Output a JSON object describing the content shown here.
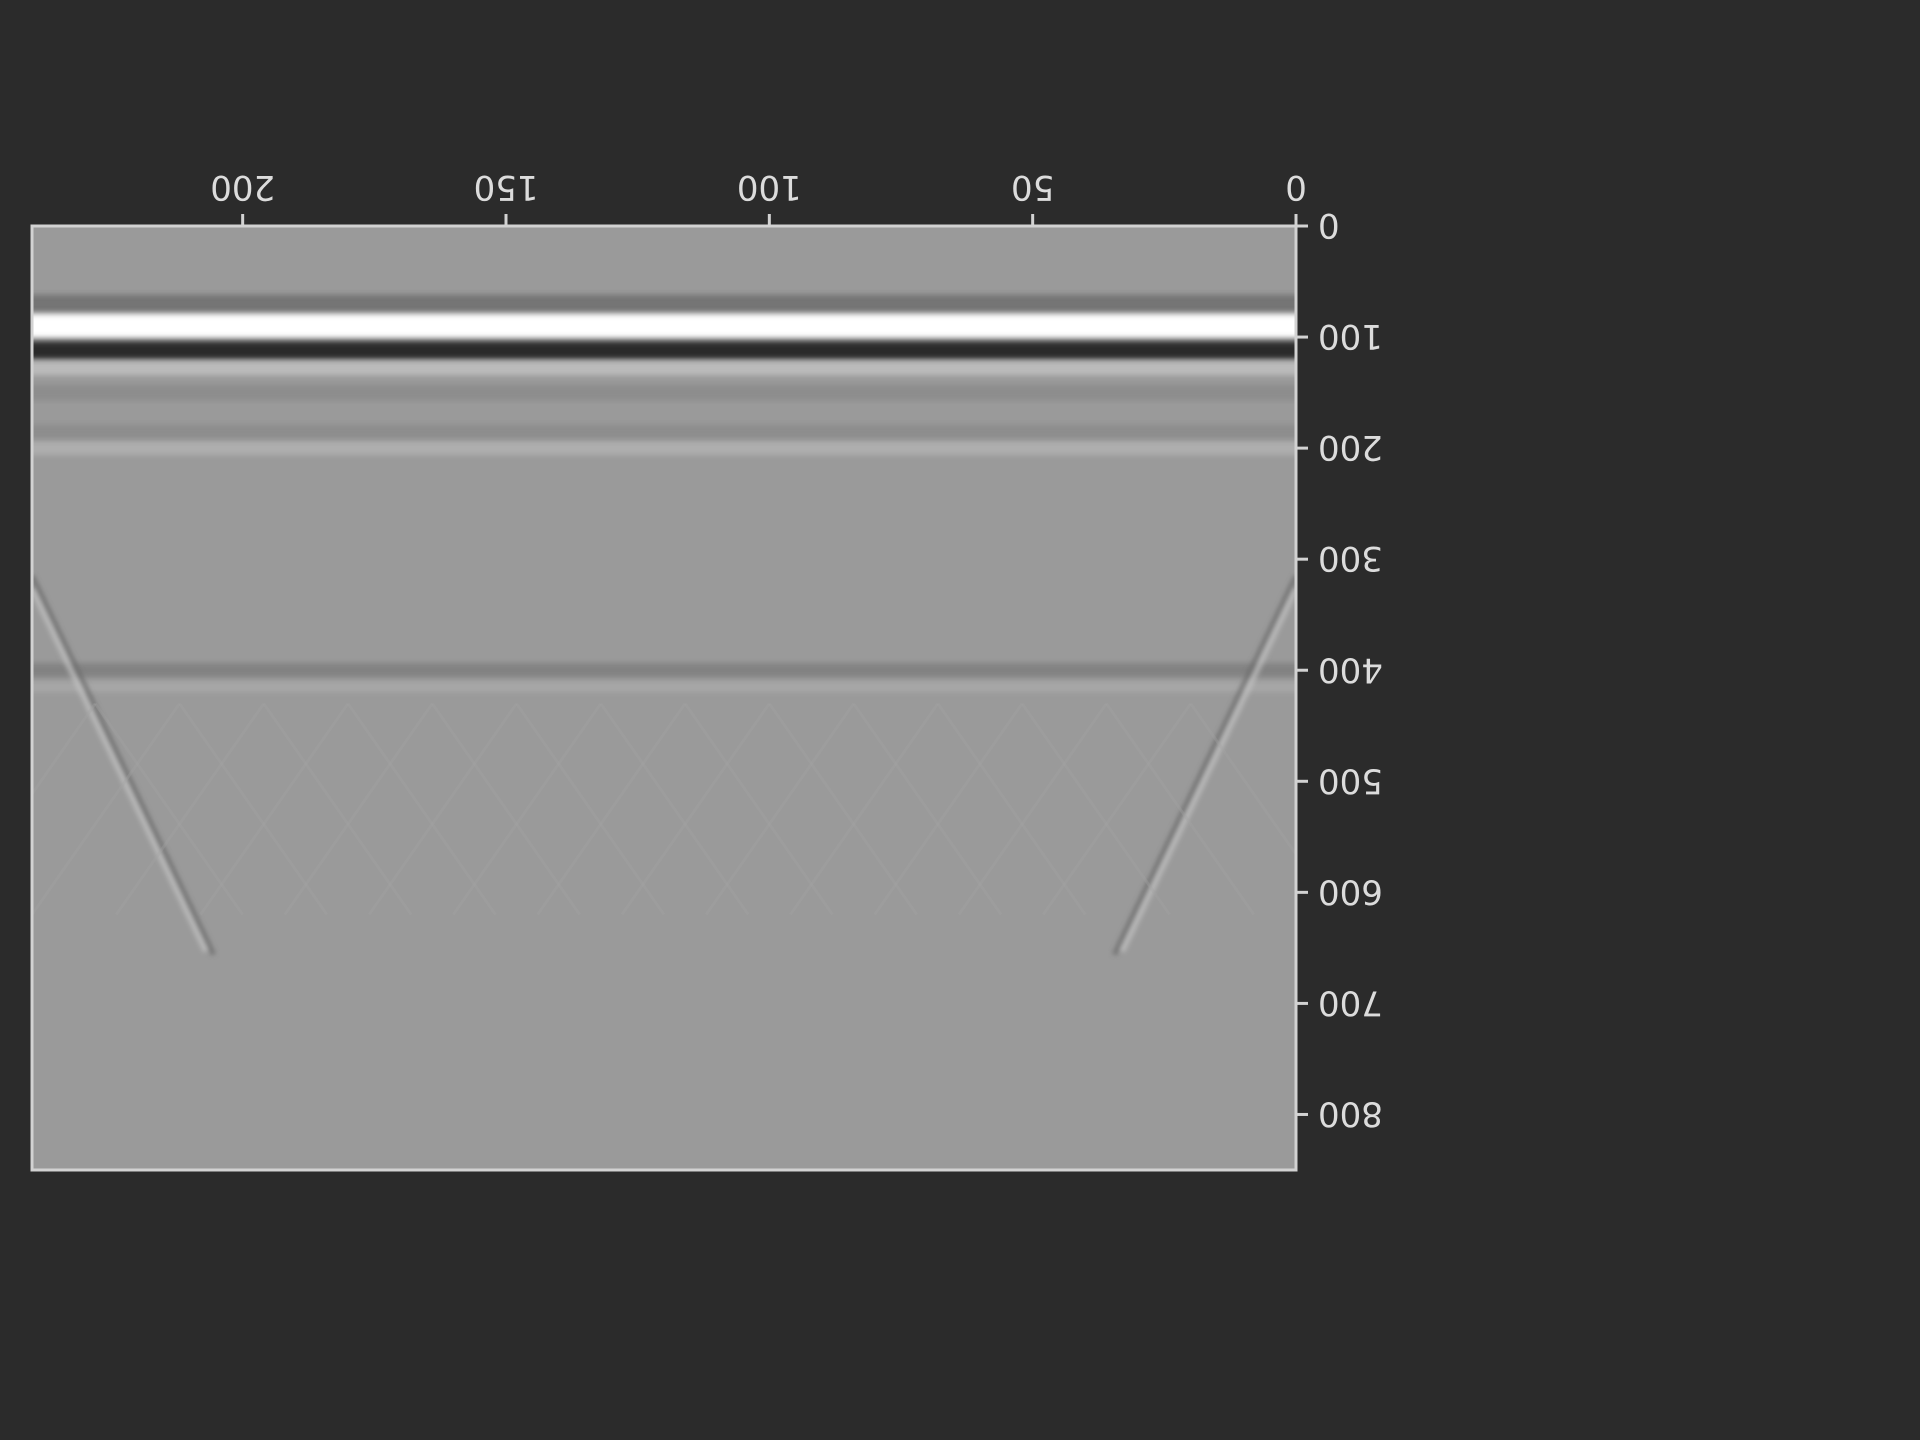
{
  "chart_data": {
    "type": "heatmap",
    "title": "",
    "xlabel": "",
    "ylabel": "",
    "orientation": "rotated 180 degrees",
    "x_range": [
      0,
      240
    ],
    "y_range": [
      0,
      850
    ],
    "x_ticks": [
      "0",
      "50",
      "100",
      "150",
      "200"
    ],
    "y_ticks": [
      "0",
      "100",
      "200",
      "300",
      "400",
      "500",
      "600",
      "700",
      "800"
    ],
    "colormap": "gray",
    "grid": false,
    "colors": {
      "background": "#2b2b2b",
      "field": "#9a9a9a",
      "axis": "#d2d2d2",
      "tick_text": "#dcdcdc"
    },
    "features": [
      {
        "name": "direct-wave-bright",
        "y": 90,
        "intensity": 1.0
      },
      {
        "name": "direct-wave-dark",
        "y": 112,
        "intensity": -1.0
      },
      {
        "name": "shallow-reflector",
        "y": 200,
        "intensity": 0.18
      },
      {
        "name": "ground-reflector",
        "y": 400,
        "intensity": -0.22
      },
      {
        "name": "hyperbola-left",
        "apex_x": 0,
        "apex_y": 315
      },
      {
        "name": "hyperbola-right",
        "apex_x": 240,
        "apex_y": 315
      }
    ]
  }
}
